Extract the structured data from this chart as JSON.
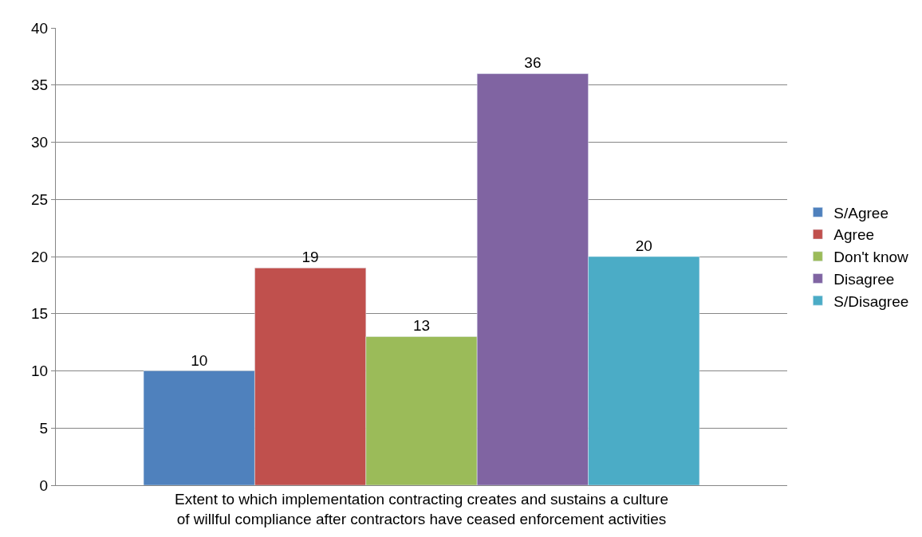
{
  "chart_data": {
    "type": "bar",
    "categories": [
      "Extent to which implementation contracting creates and sustains a culture of willful compliance after contractors have ceased enforcement activities"
    ],
    "series": [
      {
        "name": "S/Agree",
        "color": "#4f81bd",
        "values": [
          10
        ]
      },
      {
        "name": "Agree",
        "color": "#c0504d",
        "values": [
          19
        ]
      },
      {
        "name": "Don't know",
        "color": "#9bbb59",
        "values": [
          13
        ]
      },
      {
        "name": "Disagree",
        "color": "#8064a2",
        "values": [
          36
        ]
      },
      {
        "name": "S/Disagree",
        "color": "#4bacc6",
        "values": [
          20
        ]
      }
    ],
    "ylim": [
      0,
      40
    ],
    "yticks": [
      0,
      5,
      10,
      15,
      20,
      25,
      30,
      35,
      40
    ],
    "grid": "y",
    "legend": "right",
    "data_labels": true
  }
}
